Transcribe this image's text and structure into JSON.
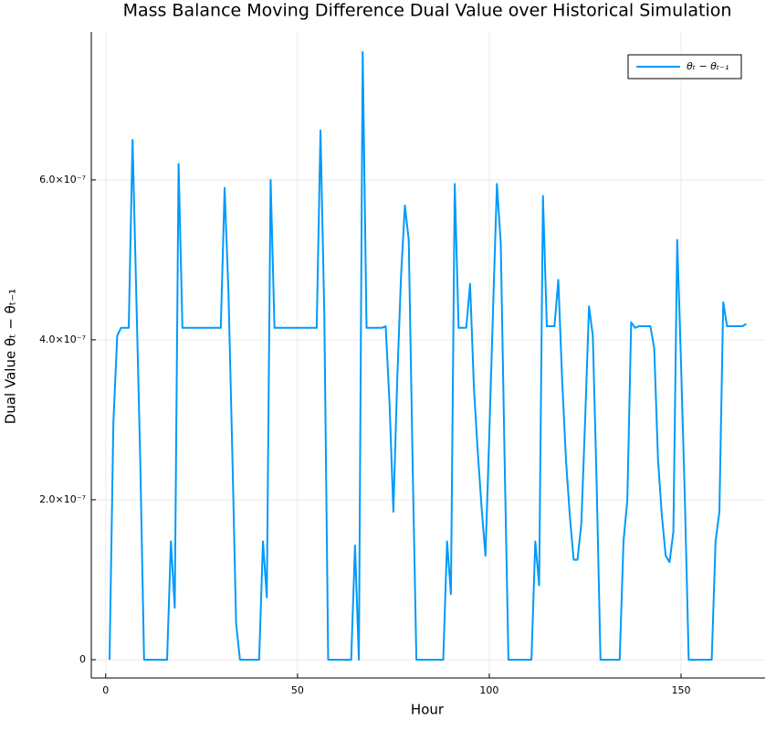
{
  "chart_data": {
    "type": "line",
    "title": "Mass Balance Moving Difference Dual Value over Historical Simulation",
    "x_label": "Hour",
    "y_label": "Dual Value θₜ − θₜ₋₁",
    "x": [
      1,
      2,
      3,
      4,
      5,
      6,
      7,
      8,
      9,
      10,
      11,
      12,
      13,
      14,
      15,
      16,
      17,
      18,
      19,
      20,
      21,
      22,
      23,
      24,
      25,
      26,
      27,
      28,
      29,
      30,
      31,
      32,
      33,
      34,
      35,
      36,
      37,
      38,
      39,
      40,
      41,
      42,
      43,
      44,
      45,
      46,
      47,
      48,
      49,
      50,
      51,
      52,
      53,
      54,
      55,
      56,
      57,
      58,
      59,
      60,
      61,
      62,
      63,
      64,
      65,
      66,
      67,
      68,
      69,
      70,
      71,
      72,
      73,
      74,
      75,
      76,
      77,
      78,
      79,
      80,
      81,
      82,
      83,
      84,
      85,
      86,
      87,
      88,
      89,
      90,
      91,
      92,
      93,
      94,
      95,
      96,
      97,
      98,
      99,
      100,
      101,
      102,
      103,
      104,
      105,
      106,
      107,
      108,
      109,
      110,
      111,
      112,
      113,
      114,
      115,
      116,
      117,
      118,
      119,
      120,
      121,
      122,
      123,
      124,
      125,
      126,
      127,
      128,
      129,
      130,
      131,
      132,
      133,
      134,
      135,
      136,
      137,
      138,
      139,
      140,
      141,
      142,
      143,
      144,
      145,
      146,
      147,
      148,
      149,
      150,
      151,
      152,
      153,
      154,
      155,
      156,
      157,
      158,
      159,
      160,
      161,
      162,
      163,
      164,
      165,
      166,
      167
    ],
    "series": [
      {
        "name": "θₜ − θₜ₋₁",
        "color": "#009af9",
        "values": [
          0,
          2.97e-07,
          4.05e-07,
          4.15e-07,
          4.15e-07,
          4.15e-07,
          6.5e-07,
          4.5e-07,
          2.5e-07,
          0,
          0,
          0,
          0,
          0,
          0,
          0,
          1.48e-07,
          6.5e-08,
          6.2e-07,
          4.15e-07,
          4.15e-07,
          4.15e-07,
          4.15e-07,
          4.15e-07,
          4.15e-07,
          4.15e-07,
          4.15e-07,
          4.15e-07,
          4.15e-07,
          4.15e-07,
          5.9e-07,
          4.6e-07,
          2.6e-07,
          4.5e-08,
          0,
          0,
          0,
          0,
          0,
          0,
          1.48e-07,
          7.8e-08,
          6e-07,
          4.15e-07,
          4.15e-07,
          4.15e-07,
          4.15e-07,
          4.15e-07,
          4.15e-07,
          4.15e-07,
          4.15e-07,
          4.15e-07,
          4.15e-07,
          4.15e-07,
          4.15e-07,
          6.62e-07,
          4.3e-07,
          0,
          0,
          0,
          0,
          0,
          0,
          0,
          1.43e-07,
          0,
          7.6e-07,
          4.15e-07,
          4.15e-07,
          4.15e-07,
          4.15e-07,
          4.15e-07,
          4.17e-07,
          3.2e-07,
          1.85e-07,
          3.5e-07,
          4.8e-07,
          5.68e-07,
          5.25e-07,
          2.5e-07,
          0,
          0,
          0,
          0,
          0,
          0,
          0,
          0,
          1.48e-07,
          8.2e-08,
          5.95e-07,
          4.15e-07,
          4.15e-07,
          4.15e-07,
          4.7e-07,
          3.4e-07,
          2.6e-07,
          1.9e-07,
          1.3e-07,
          2.8e-07,
          4.4e-07,
          5.95e-07,
          5.2e-07,
          2.5e-07,
          0,
          0,
          0,
          0,
          0,
          0,
          0,
          1.48e-07,
          9.3e-08,
          5.8e-07,
          4.17e-07,
          4.17e-07,
          4.17e-07,
          4.75e-07,
          3.5e-07,
          2.5e-07,
          1.8e-07,
          1.25e-07,
          1.25e-07,
          1.7e-07,
          3e-07,
          4.42e-07,
          4.05e-07,
          2.2e-07,
          0,
          0,
          0,
          0,
          0,
          0,
          1.48e-07,
          2e-07,
          4.22e-07,
          4.15e-07,
          4.17e-07,
          4.17e-07,
          4.17e-07,
          4.17e-07,
          3.9e-07,
          2.5e-07,
          1.8e-07,
          1.3e-07,
          1.22e-07,
          1.6e-07,
          5.25e-07,
          3.7e-07,
          2e-07,
          0,
          0,
          0,
          0,
          0,
          0,
          0,
          1.48e-07,
          1.85e-07,
          4.47e-07,
          4.17e-07,
          4.17e-07,
          4.17e-07,
          4.17e-07,
          4.17e-07,
          4.2e-07
        ]
      }
    ],
    "xlim": [
      -3.76,
      171.9
    ],
    "ylim": [
      -2.29e-08,
      7.85e-07
    ],
    "xticks": [
      0,
      50,
      100,
      150
    ],
    "yticks": [
      0,
      {
        "value": 2e-07,
        "label": "2.0×10⁻⁷"
      },
      {
        "value": 4e-07,
        "label": "4.0×10⁻⁷"
      },
      {
        "value": 6e-07,
        "label": "6.0×10⁻⁷"
      }
    ],
    "grid": true,
    "legend": "top-right"
  }
}
